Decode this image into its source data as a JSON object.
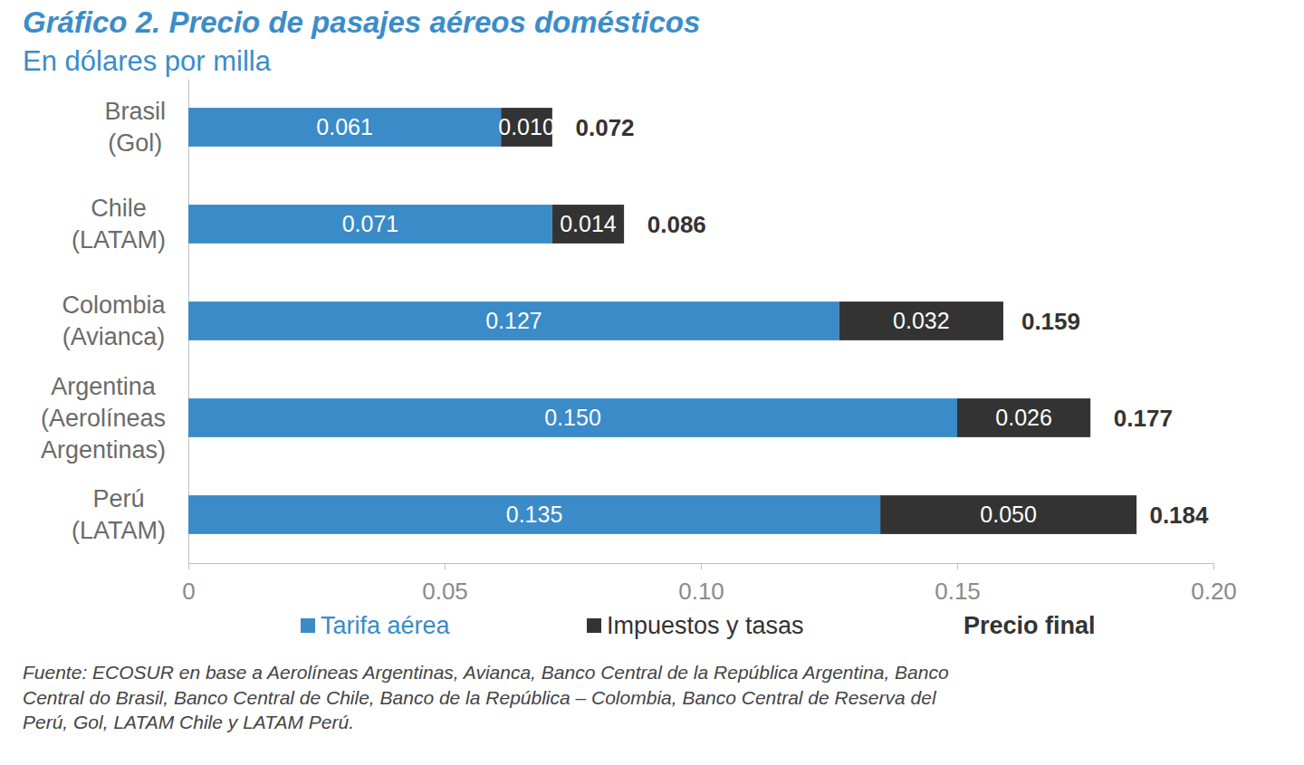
{
  "chart_data": {
    "type": "bar",
    "orientation": "horizontal",
    "stacked": true,
    "data_labels": true,
    "grid": false,
    "legend": "bottom",
    "title": "Gráfico 2. Precio de pasajes aéreos domésticos",
    "subtitle": "En dólares por milla",
    "categories": [
      "Brasil\n(Gol)",
      "Chile\n(LATAM)",
      "Colombia\n(Avianca)",
      "Argentina\n(Aerolíneas\nArgentinas)",
      "Perú\n(LATAM)"
    ],
    "series": [
      {
        "name": "Tarifa aérea",
        "color": "#3a8bc8",
        "values": [
          0.061,
          0.071,
          0.127,
          0.15,
          0.135
        ],
        "value_labels": [
          "0.061",
          "0.071",
          "0.127",
          "0.150",
          "0.135"
        ]
      },
      {
        "name": "Impuestos y tasas",
        "color": "#333333",
        "values": [
          0.01,
          0.014,
          0.032,
          0.026,
          0.05
        ],
        "value_labels": [
          "0.010",
          "0.014",
          "0.032",
          "0.026",
          "0.050"
        ]
      }
    ],
    "totals": {
      "name": "Precio final",
      "values": [
        0.072,
        0.086,
        0.159,
        0.177,
        0.184
      ],
      "value_labels": [
        "0.072",
        "0.086",
        "0.159",
        "0.177",
        "0.184"
      ]
    },
    "xlim": [
      0,
      0.2
    ],
    "xticks": [
      0,
      0.05,
      {
        "value": 0.1,
        "label": "0.10"
      },
      0.15,
      {
        "value": 0.2,
        "label": "0.20"
      }
    ],
    "source": "Fuente: ECOSUR en base a Aerolíneas Argentinas, Avianca, Banco Central de la República Argentina, Banco\nCentral do Brasil, Banco Central de Chile, Banco de la República – Colombia, Banco Central de Reserva del\nPerú, Gol, LATAM Chile y LATAM Perú."
  }
}
